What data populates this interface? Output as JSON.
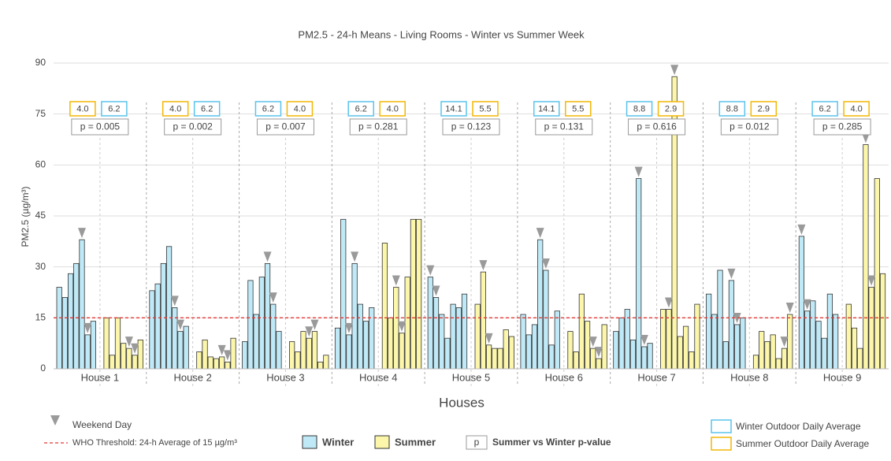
{
  "chart_data": {
    "type": "bar",
    "title": "PM2.5 - 24-h Means - Living Rooms - Winter vs Summer Week",
    "x_label": "Houses",
    "y_label": "PM2.5 (µg/m³)",
    "categories": [
      "House 1",
      "House 2",
      "House 3",
      "House 4",
      "House 5",
      "House 6",
      "House 7",
      "House 8",
      "House 9"
    ],
    "ylim": [
      0,
      90
    ],
    "yticks": [
      0,
      15,
      30,
      45,
      60,
      75,
      90
    ],
    "grid": true,
    "threshold": 15,
    "threshold_color": "#e53935",
    "series": [
      {
        "name": "Winter",
        "color": "#bfe9f7",
        "values": [
          [
            24,
            21,
            28,
            31,
            38,
            10,
            14
          ],
          [
            23,
            25,
            31,
            36,
            18,
            11,
            12.5
          ],
          [
            8,
            26,
            16,
            27,
            31,
            19,
            11
          ],
          [
            12,
            44,
            10,
            31,
            19,
            14,
            18
          ],
          [
            27,
            21,
            16,
            9,
            19,
            18,
            22
          ],
          [
            16,
            10,
            13,
            38,
            29,
            7,
            17
          ],
          [
            11,
            15,
            17.5,
            8.5,
            56,
            6.5,
            7.5
          ],
          [
            22,
            16,
            29,
            8,
            26,
            13,
            15
          ],
          [
            39,
            17,
            20,
            14,
            9,
            22,
            16
          ]
        ],
        "weekend": [
          [
            4,
            5
          ],
          [
            4,
            5
          ],
          [
            4,
            5
          ],
          [
            2,
            3
          ],
          [
            0,
            1
          ],
          [
            3,
            4
          ],
          [
            4,
            5
          ],
          [
            4,
            5
          ],
          [
            0,
            1
          ]
        ]
      },
      {
        "name": "Summer",
        "color": "#fbf6aa",
        "values": [
          [
            15,
            4,
            15,
            7.5,
            6,
            4,
            8.5
          ],
          [
            5,
            8.5,
            3.5,
            3,
            3.5,
            2,
            9
          ],
          [
            8,
            5,
            11,
            9,
            11,
            2,
            4
          ],
          [
            37,
            15,
            24,
            10.5,
            27,
            44,
            44
          ],
          [
            19,
            28.5,
            7,
            6,
            6,
            11.5,
            9.5
          ],
          [
            11,
            5,
            22,
            14,
            6,
            3,
            13
          ],
          [
            17.5,
            17.5,
            86,
            9.5,
            12.5,
            5,
            19
          ],
          [
            4,
            11,
            8,
            10,
            3,
            6,
            16
          ],
          [
            19,
            12,
            6,
            66,
            24,
            56,
            28
          ]
        ],
        "weekend": [
          [
            4,
            5
          ],
          [
            4,
            5
          ],
          [
            3,
            4
          ],
          [
            2,
            3
          ],
          [
            1,
            2
          ],
          [
            4,
            5
          ],
          [
            1,
            2
          ],
          [
            5,
            6
          ],
          [
            3,
            4
          ]
        ]
      }
    ],
    "outdoor": [
      {
        "labels": [
          "4.0",
          "6.2"
        ],
        "colors": [
          "#f2b705",
          "#5bc3ec"
        ]
      },
      {
        "labels": [
          "4.0",
          "6.2"
        ],
        "colors": [
          "#f2b705",
          "#5bc3ec"
        ]
      },
      {
        "labels": [
          "6.2",
          "4.0"
        ],
        "colors": [
          "#5bc3ec",
          "#f2b705"
        ]
      },
      {
        "labels": [
          "6.2",
          "4.0"
        ],
        "colors": [
          "#5bc3ec",
          "#f2b705"
        ]
      },
      {
        "labels": [
          "14.1",
          "5.5"
        ],
        "colors": [
          "#5bc3ec",
          "#f2b705"
        ]
      },
      {
        "labels": [
          "14.1",
          "5.5"
        ],
        "colors": [
          "#5bc3ec",
          "#f2b705"
        ]
      },
      {
        "labels": [
          "8.8",
          "2.9"
        ],
        "colors": [
          "#5bc3ec",
          "#f2b705"
        ]
      },
      {
        "labels": [
          "8.8",
          "2.9"
        ],
        "colors": [
          "#5bc3ec",
          "#f2b705"
        ]
      },
      {
        "labels": [
          "6.2",
          "4.0"
        ],
        "colors": [
          "#5bc3ec",
          "#f2b705"
        ]
      }
    ],
    "p_values": [
      "p = 0.005",
      "p = 0.002",
      "p = 0.007",
      "p = 0.281",
      "p = 0.123",
      "p = 0.131",
      "p = 0.616",
      "p = 0.012",
      "p = 0.285"
    ],
    "legend": {
      "weekend": "Weekend Day",
      "threshold": "WHO Threshold: 24-h Average of 15 µg/m³",
      "p_symbol": "p",
      "p_text": "Summer vs Winter p-value",
      "winter_outdoor": "Winter Outdoor Daily Average",
      "summer_outdoor": "Summer Outdoor Daily Average"
    }
  }
}
